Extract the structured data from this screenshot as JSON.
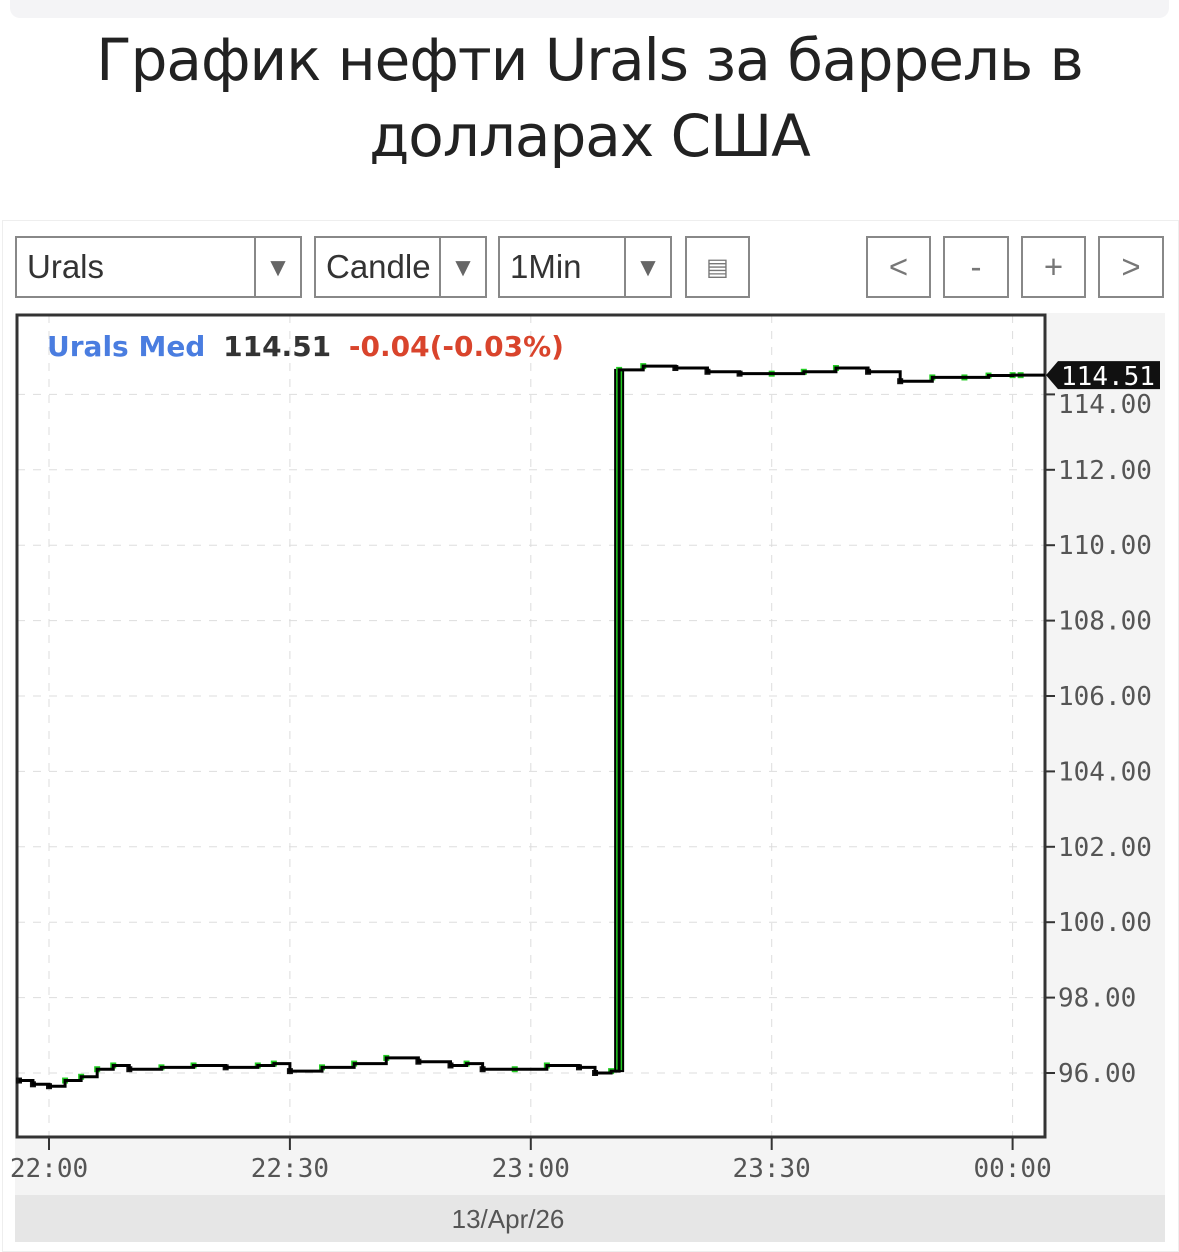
{
  "title": "График нефти Urals за баррель в долларах США",
  "toolbar": {
    "symbol": "Urals",
    "chart_type": "Candle",
    "interval": "1Min",
    "zoom_buttons": [
      "<",
      "-",
      "+",
      ">"
    ]
  },
  "legend": {
    "name": "Urals Med",
    "price": "114.51",
    "change": "-0.04(-0.03%)"
  },
  "colors": {
    "name": "#4a7de0",
    "change": "#d9442c",
    "up": "#22cc22",
    "line": "#000000"
  },
  "chart_data": {
    "type": "line",
    "title": "",
    "xlabel": "13/Apr/26",
    "ylabel": "",
    "x_ticks": [
      "22:00",
      "22:30",
      "23:00",
      "23:30",
      "00:00"
    ],
    "y_ticks": [
      "96.00",
      "98.00",
      "100.00",
      "102.00",
      "104.00",
      "106.00",
      "108.00",
      "110.00",
      "112.00",
      "114.00"
    ],
    "ylim": [
      94.3,
      116.3
    ],
    "last_price_label": "114.51",
    "grid": true,
    "x": [
      "21:56",
      "21:58",
      "22:00",
      "22:02",
      "22:04",
      "22:06",
      "22:08",
      "22:10",
      "22:14",
      "22:18",
      "22:22",
      "22:26",
      "22:28",
      "22:30",
      "22:34",
      "22:38",
      "22:42",
      "22:46",
      "22:50",
      "22:52",
      "22:54",
      "22:58",
      "23:02",
      "23:06",
      "23:08",
      "23:10",
      "23:11",
      "23:14",
      "23:18",
      "23:22",
      "23:26",
      "23:30",
      "23:34",
      "23:38",
      "23:42",
      "23:46",
      "23:50",
      "23:54",
      "23:57",
      "00:00",
      "00:01"
    ],
    "values": [
      95.8,
      95.7,
      95.65,
      95.8,
      95.9,
      96.1,
      96.2,
      96.1,
      96.15,
      96.2,
      96.15,
      96.2,
      96.25,
      96.05,
      96.15,
      96.25,
      96.4,
      96.3,
      96.2,
      96.25,
      96.1,
      96.1,
      96.2,
      96.15,
      96.0,
      96.05,
      114.65,
      114.75,
      114.7,
      114.6,
      114.55,
      114.55,
      114.6,
      114.7,
      114.6,
      114.35,
      114.45,
      114.45,
      114.5,
      114.51,
      114.51
    ]
  }
}
